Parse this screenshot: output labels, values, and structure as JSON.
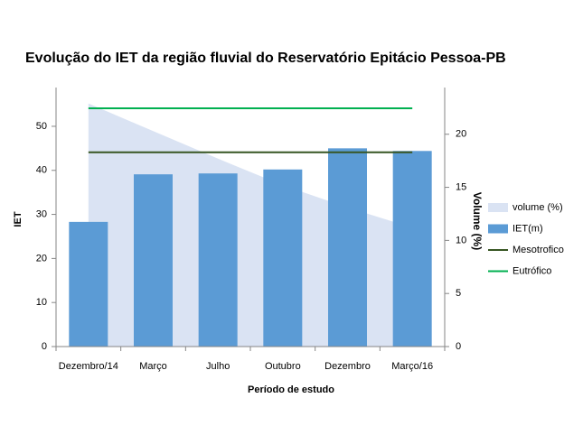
{
  "chart_data": {
    "type": "bar",
    "title": "Evolução do IET da região fluvial do Reservatório Epitácio Pessoa-PB",
    "x_label": "Período de estudo",
    "y_label": "IET",
    "y2_label": "Volume (%)",
    "categories": [
      "Dezembro/14",
      "Março",
      "Julho",
      "Outubro",
      "Dezembro",
      "Março/16"
    ],
    "series": [
      {
        "name": "volume (%)",
        "type": "area",
        "axis": "y2",
        "color": "#dae3f3",
        "values": [
          22.9,
          20.3,
          17.7,
          15.2,
          13.1,
          11.2
        ]
      },
      {
        "name": "IET(m)",
        "type": "bar",
        "color": "#5b9bd5",
        "values": [
          28.3,
          39.1,
          39.3,
          40.2,
          45.0,
          44.4
        ]
      },
      {
        "name": "Mesotrofico",
        "type": "line",
        "color": "#375623",
        "values": [
          44.1,
          44.1,
          44.1,
          44.1,
          44.1,
          44.1
        ]
      },
      {
        "name": "Eutrófico",
        "type": "line",
        "color": "#00b050",
        "values": [
          54.1,
          54.1,
          54.1,
          54.1,
          54.1,
          54.1
        ]
      }
    ],
    "ylim": [
      0,
      58.8
    ],
    "yticks": [
      0,
      10,
      20,
      30,
      40,
      50
    ],
    "y2lim": [
      0,
      24.4
    ],
    "y2ticks": [
      0,
      5,
      10,
      15,
      20
    ],
    "grid": false,
    "legend": "right"
  }
}
